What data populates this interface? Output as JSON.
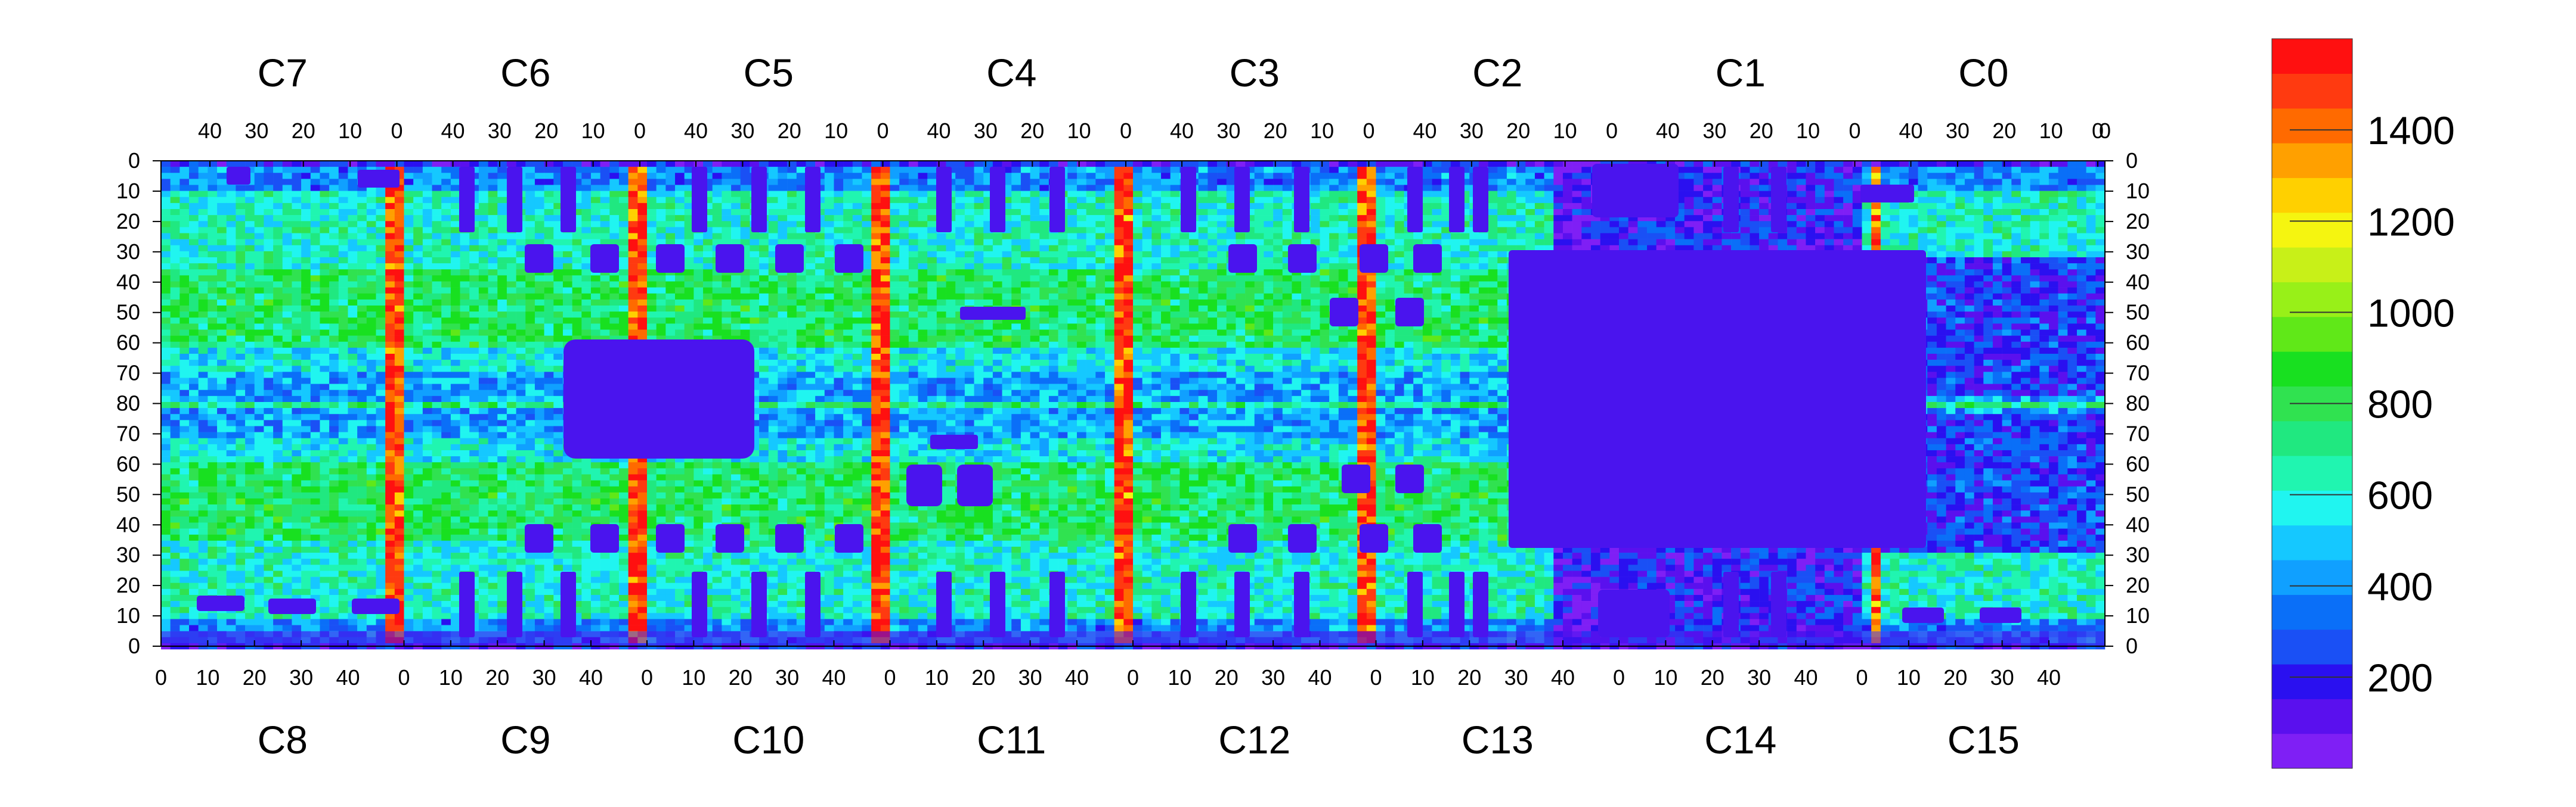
{
  "chart_data": {
    "type": "heatmap",
    "title": "",
    "xlabel": "",
    "ylabel": "",
    "top_chip_labels": [
      "C7",
      "C6",
      "C5",
      "C4",
      "C3",
      "C2",
      "C1",
      "C0"
    ],
    "bottom_chip_labels": [
      "C8",
      "C9",
      "C10",
      "C11",
      "C12",
      "C13",
      "C14",
      "C15"
    ],
    "top_x_tick_labels": [
      "40",
      "30",
      "20",
      "10",
      "0"
    ],
    "bottom_x_tick_labels": [
      "0",
      "10",
      "20",
      "30",
      "40"
    ],
    "y_tick_labels": [
      "0",
      "10",
      "20",
      "30",
      "40",
      "50",
      "60",
      "70",
      "80",
      "70",
      "60",
      "50",
      "40",
      "30",
      "20",
      "10",
      "0"
    ],
    "chip_columns": 52,
    "rows_per_half": 80,
    "colorbar": {
      "min": 0,
      "max": 1600,
      "tick_labels": [
        "200",
        "400",
        "600",
        "800",
        "1000",
        "1200",
        "1400"
      ],
      "colors": [
        "#7f1ff5",
        "#5a10ee",
        "#2a10f0",
        "#1a50f5",
        "#0a6ff8",
        "#10a0ff",
        "#15c8ff",
        "#20f5f0",
        "#20f5b0",
        "#20e880",
        "#30e250",
        "#18e020",
        "#60e818",
        "#98f018",
        "#c8f018",
        "#f5f510",
        "#ffd000",
        "#ffa000",
        "#ff6a00",
        "#ff3a10",
        "#ff1010"
      ]
    },
    "values_description": "Per-pixel mean value map for 16 chips arranged in two rows of eight; colour encodes value on a 0-1600 scale",
    "hot_columns": "chip boundary columns near 0 show values of about 1400-1600",
    "low_regions": "chips C13/C14 and C1/C2 right side dominated by low values ~100"
  }
}
